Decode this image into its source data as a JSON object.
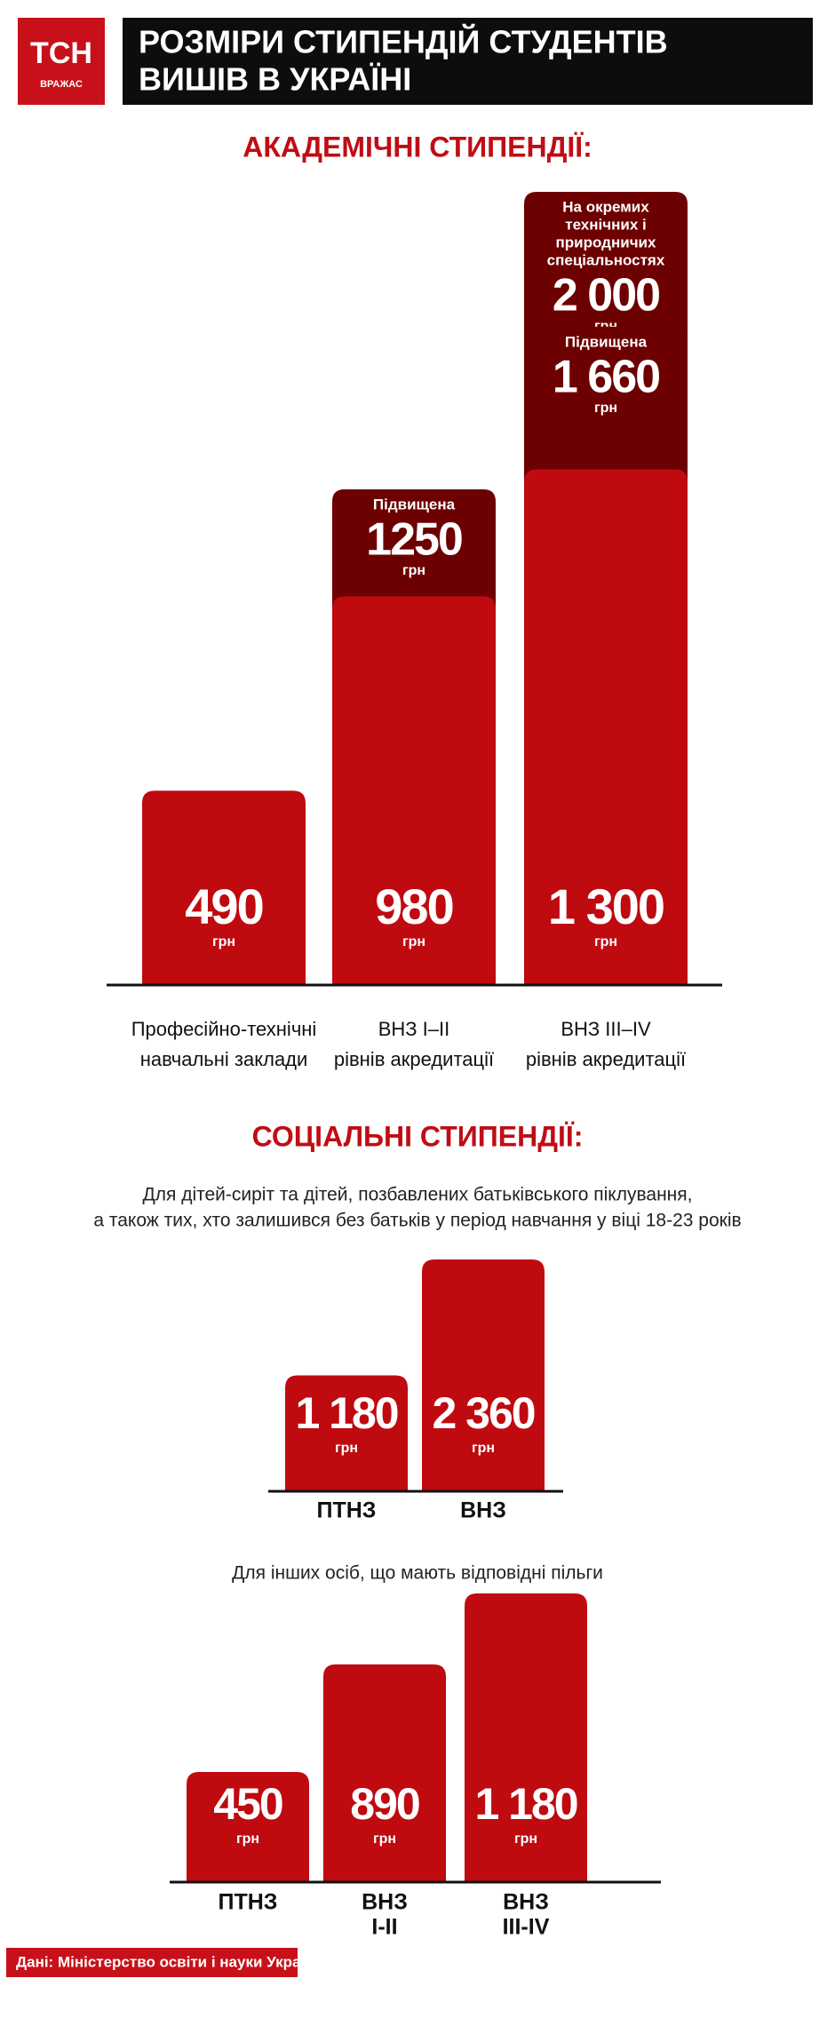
{
  "header": {
    "logo": "ТСН",
    "logo_sub": "ВРАЖАС",
    "title": [
      "РОЗМІРИ СТИПЕНДІЙ СТУДЕНТІВ",
      "ВИШІВ В УКРАЇНІ"
    ]
  },
  "chart_data": [
    {
      "type": "bar",
      "title": "АКАДЕМІЧНІ СТИПЕНДІЇ:",
      "unit": "грн",
      "categories": [
        [
          "Професійно-технічні",
          "навчальні заклади"
        ],
        [
          "ВНЗ І–ІІ",
          "рівнів акредитації"
        ],
        [
          "ВНЗ ІІІ–IV",
          "рівнів акредитації"
        ]
      ],
      "series": [
        {
          "color": "#bf0a10",
          "values": [
            490,
            980,
            1300
          ],
          "value_labels": [
            "490",
            "980",
            "1 300"
          ]
        },
        {
          "name": [
            "Підвищена"
          ],
          "color": "#6d0000",
          "values": [
            null,
            1250,
            1660
          ],
          "value_labels": [
            null,
            "1250",
            "1 660"
          ]
        },
        {
          "name": [
            "На окремих",
            "технічних і",
            "природничих",
            "спеціальностях"
          ],
          "color": "#6d0000",
          "values": [
            null,
            null,
            2000
          ],
          "value_labels": [
            null,
            null,
            "2 000"
          ]
        }
      ]
    },
    {
      "type": "bar",
      "title": "СОЦІАЛЬНІ СТИПЕНДІЇ:",
      "unit": "грн",
      "subtitle": [
        "Для дітей-сиріт та дітей, позбавлених батьківського піклування,",
        "а також тих, хто залишився без батьків у період навчання у віці 18-23 років"
      ],
      "categories": [
        [
          "ПТНЗ"
        ],
        [
          "ВНЗ"
        ]
      ],
      "series": [
        {
          "color": "#bf0a10",
          "values": [
            1180,
            2360
          ],
          "value_labels": [
            "1 180",
            "2 360"
          ]
        }
      ]
    },
    {
      "type": "bar",
      "unit": "грн",
      "subtitle": [
        "Для інших осіб, що мають відповідні пільги"
      ],
      "categories": [
        [
          "ПТНЗ"
        ],
        [
          "ВНЗ",
          "І-ІІ"
        ],
        [
          "ВНЗ",
          "ІІІ-IV"
        ]
      ],
      "series": [
        {
          "color": "#bf0a10",
          "values": [
            450,
            890,
            1180
          ],
          "value_labels": [
            "450",
            "890",
            "1 180"
          ]
        }
      ]
    }
  ],
  "footer": "Дані: Міністерство освіти і науки України"
}
